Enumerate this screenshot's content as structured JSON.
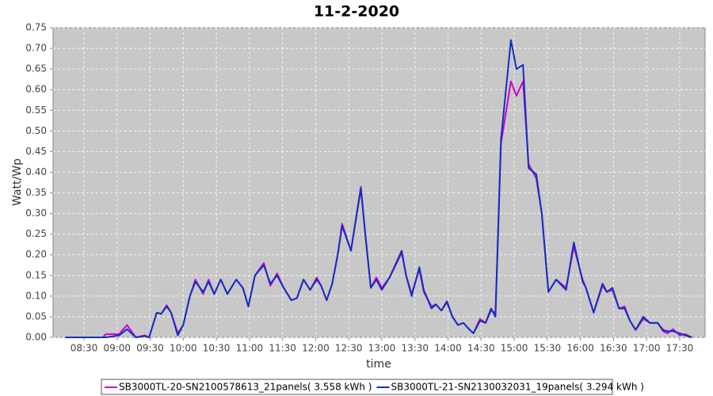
{
  "chart_data": {
    "type": "line",
    "title": "11-2-2020",
    "x_label": "time",
    "y_label": "Watt/Wp",
    "x": [
      "08:13",
      "08:47",
      "08:50",
      "09:02",
      "09:09",
      "09:17",
      "09:25",
      "09:29",
      "09:36",
      "09:40",
      "09:45",
      "09:49",
      "09:55",
      "10:00",
      "10:06",
      "10:11",
      "10:18",
      "10:23",
      "10:28",
      "10:34",
      "10:40",
      "10:48",
      "10:54",
      "10:59",
      "11:05",
      "11:13",
      "11:19",
      "11:25",
      "11:31",
      "11:38",
      "11:43",
      "11:49",
      "11:55",
      "12:01",
      "12:05",
      "12:10",
      "12:15",
      "12:20",
      "12:24",
      "12:32",
      "12:41",
      "12:45",
      "12:50",
      "12:55",
      "13:00",
      "13:07",
      "13:18",
      "13:22",
      "13:27",
      "13:34",
      "13:38",
      "13:45",
      "13:49",
      "13:54",
      "13:59",
      "14:04",
      "14:09",
      "14:14",
      "14:19",
      "14:23",
      "14:29",
      "14:34",
      "14:39",
      "14:43",
      "14:48",
      "14:57",
      "15:02",
      "15:08",
      "15:13",
      "15:20",
      "15:25",
      "15:31",
      "15:38",
      "15:47",
      "15:54",
      "16:02",
      "16:05",
      "16:12",
      "16:20",
      "16:24",
      "16:29",
      "16:35",
      "16:40",
      "16:45",
      "16:50",
      "16:57",
      "17:03",
      "17:10",
      "17:15",
      "17:19",
      "17:24",
      "17:30",
      "17:35",
      "17:41"
    ],
    "series": [
      {
        "name": "SB3000TL-20-SN2100578613_21panels( 3.558 kWh )",
        "color": "#cc00cc",
        "values": [
          0,
          0,
          0.008,
          0.008,
          0.03,
          0,
          0.005,
          0,
          0.06,
          0.057,
          0.078,
          0.06,
          0.01,
          0.03,
          0.1,
          0.14,
          0.105,
          0.14,
          0.105,
          0.14,
          0.105,
          0.14,
          0.12,
          0.075,
          0.15,
          0.18,
          0.125,
          0.155,
          0.12,
          0.09,
          0.095,
          0.14,
          0.115,
          0.145,
          0.125,
          0.09,
          0.13,
          0.2,
          0.275,
          0.21,
          0.365,
          0.25,
          0.12,
          0.145,
          0.12,
          0.145,
          0.205,
          0.15,
          0.105,
          0.165,
          0.11,
          0.075,
          0.08,
          0.065,
          0.088,
          0.05,
          0.03,
          0.035,
          0.02,
          0.01,
          0.045,
          0.035,
          0.065,
          0.06,
          0.47,
          0.62,
          0.585,
          0.62,
          0.42,
          0.385,
          0.3,
          0.11,
          0.14,
          0.12,
          0.22,
          0.14,
          0.12,
          0.06,
          0.125,
          0.11,
          0.115,
          0.07,
          0.075,
          0.04,
          0.018,
          0.045,
          0.035,
          0.035,
          0.015,
          0.01,
          0.02,
          0.005,
          0.008,
          0
        ]
      },
      {
        "name": "SB3000TL-21-SN2130032031_19panels( 3.294 kWh )",
        "color": "#1030c0",
        "values": [
          0,
          0,
          0,
          0.005,
          0.02,
          0,
          0.003,
          0,
          0.06,
          0.057,
          0.075,
          0.06,
          0.005,
          0.03,
          0.1,
          0.135,
          0.11,
          0.135,
          0.105,
          0.14,
          0.105,
          0.14,
          0.12,
          0.075,
          0.15,
          0.175,
          0.13,
          0.15,
          0.12,
          0.09,
          0.095,
          0.14,
          0.115,
          0.14,
          0.125,
          0.09,
          0.13,
          0.2,
          0.27,
          0.21,
          0.36,
          0.25,
          0.12,
          0.14,
          0.115,
          0.145,
          0.21,
          0.15,
          0.1,
          0.17,
          0.115,
          0.07,
          0.08,
          0.065,
          0.085,
          0.05,
          0.03,
          0.035,
          0.02,
          0.01,
          0.04,
          0.035,
          0.07,
          0.05,
          0.48,
          0.72,
          0.65,
          0.66,
          0.41,
          0.395,
          0.3,
          0.11,
          0.14,
          0.115,
          0.23,
          0.135,
          0.12,
          0.06,
          0.13,
          0.11,
          0.12,
          0.07,
          0.07,
          0.04,
          0.018,
          0.05,
          0.035,
          0.035,
          0.018,
          0.015,
          0.015,
          0.01,
          0.005,
          0
        ]
      }
    ],
    "xlim": [
      "08:02",
      "17:53"
    ],
    "xticks": [
      "08:30",
      "09:00",
      "09:30",
      "10:00",
      "10:30",
      "11:00",
      "11:30",
      "12:00",
      "12:30",
      "13:00",
      "13:30",
      "14:00",
      "14:30",
      "15:00",
      "15:30",
      "16:00",
      "16:30",
      "17:00",
      "17:30"
    ],
    "ylim": [
      0,
      0.75
    ],
    "yticks": [
      {
        "value": 0,
        "label": "0.00"
      },
      0.05,
      {
        "value": 0.1,
        "label": "0.10"
      },
      0.15,
      {
        "value": 0.2,
        "label": "0.20"
      },
      0.25,
      {
        "value": 0.3,
        "label": "0.30"
      },
      0.35,
      {
        "value": 0.4,
        "label": "0.40"
      },
      0.45,
      {
        "value": 0.5,
        "label": "0.50"
      },
      0.55,
      {
        "value": 0.6,
        "label": "0.60"
      },
      0.65,
      {
        "value": 0.7,
        "label": "0.70"
      },
      0.75
    ],
    "grid": true,
    "legend": "bottom"
  }
}
